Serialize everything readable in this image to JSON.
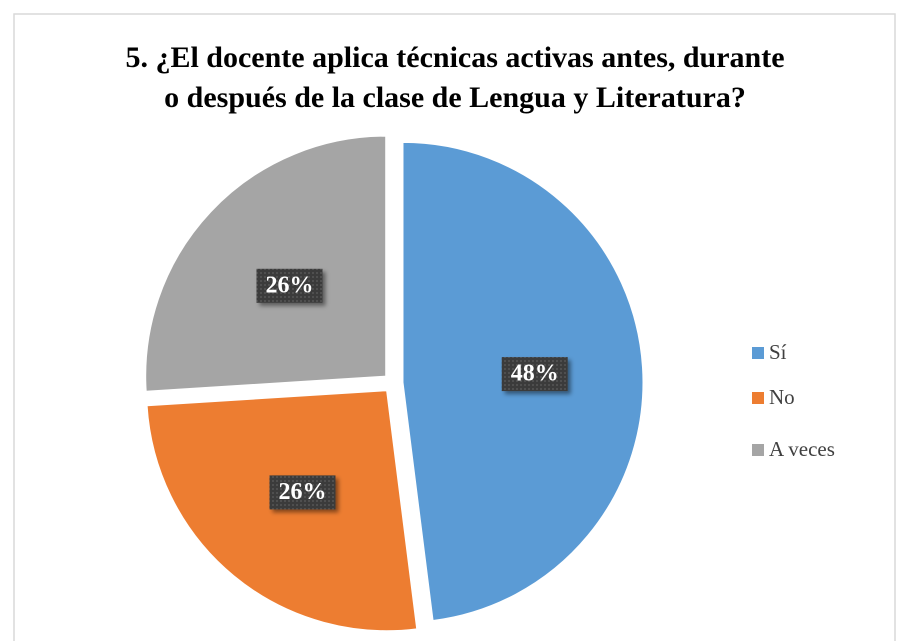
{
  "chart_data": {
    "type": "pie",
    "title": [
      "5. ¿El docente aplica técnicas activas antes, durante",
      "o después de la clase de Lengua y Literatura?"
    ],
    "categories": [
      "Sí",
      "No",
      "A veces"
    ],
    "values": [
      48,
      26,
      26
    ],
    "value_labels": [
      "48%",
      "26%",
      "26%"
    ],
    "colors": [
      "#5b9bd5",
      "#ed7d31",
      "#a5a5a5"
    ],
    "legend": "right"
  }
}
